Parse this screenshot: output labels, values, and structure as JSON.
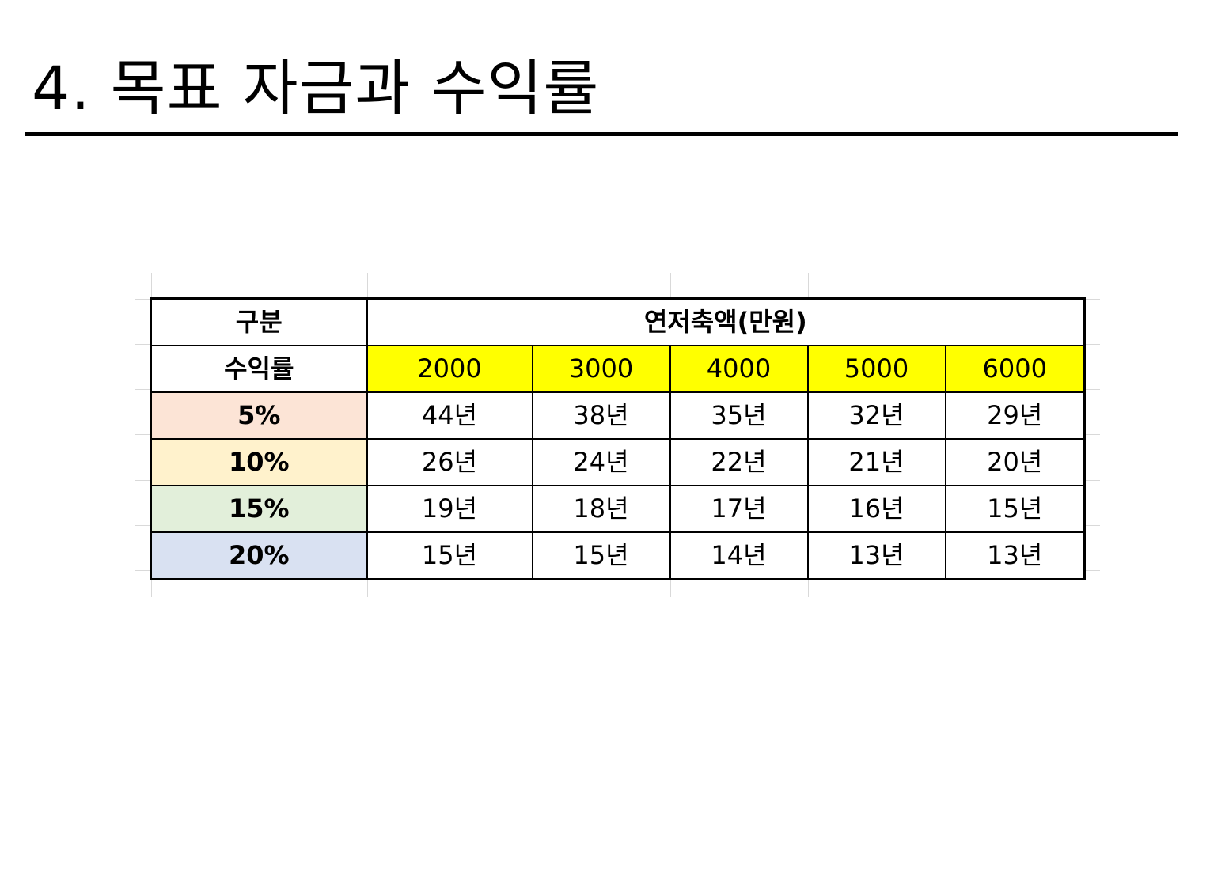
{
  "title": "4. 목표 자금과 수익률",
  "table": {
    "header_category": "구분",
    "header_group": "연저축액(만원)",
    "header_rate": "수익률",
    "amounts": [
      "2000",
      "3000",
      "4000",
      "5000",
      "6000"
    ],
    "rows": [
      {
        "rate": "5%",
        "color": "#fce4d6",
        "values": [
          "44년",
          "38년",
          "35년",
          "32년",
          "29년"
        ]
      },
      {
        "rate": "10%",
        "color": "#fff2cc",
        "values": [
          "26년",
          "24년",
          "22년",
          "21년",
          "20년"
        ]
      },
      {
        "rate": "15%",
        "color": "#e2efda",
        "values": [
          "19년",
          "18년",
          "17년",
          "16년",
          "15년"
        ]
      },
      {
        "rate": "20%",
        "color": "#d9e1f2",
        "values": [
          "15년",
          "15년",
          "14년",
          "13년",
          "13년"
        ]
      }
    ],
    "amount_color": "#ffff00"
  }
}
